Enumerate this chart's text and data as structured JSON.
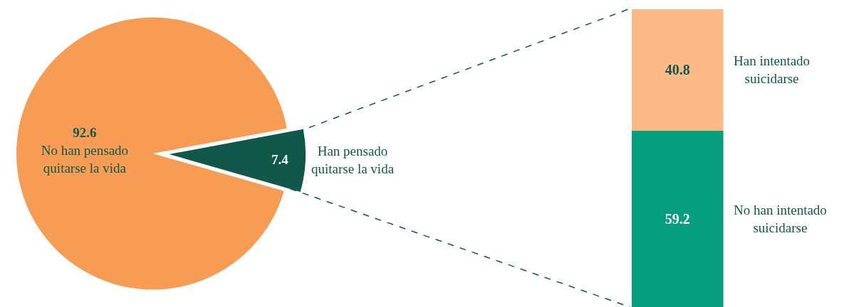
{
  "chart_data": [
    {
      "type": "pie",
      "categories": [
        "No han pensado quitarse la vida",
        "Han pensado quitarse la vida"
      ],
      "values": [
        92.6,
        7.4
      ],
      "colors": [
        "#f79c55",
        "#11574a"
      ],
      "data_labels": true
    },
    {
      "type": "bar",
      "stacked": true,
      "categories": [
        null
      ],
      "data_labels": true,
      "series": [
        {
          "name": "No han intentado suicidarse",
          "color": "#069e7e",
          "values": [
            59.2
          ]
        },
        {
          "name": "Han intentado suicidarse",
          "color": "#fbba87",
          "values": [
            40.8
          ]
        }
      ]
    }
  ]
}
